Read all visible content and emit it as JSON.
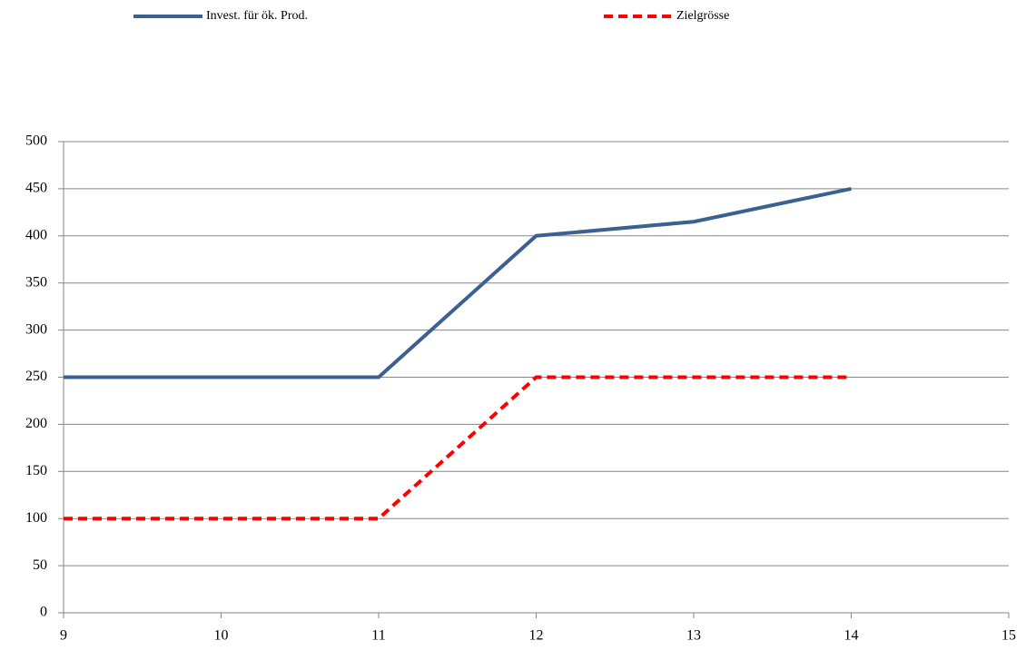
{
  "chart_data": {
    "type": "line",
    "x": [
      9,
      10,
      11,
      12,
      13,
      14
    ],
    "series": [
      {
        "name": "Invest. für ök. Prod.",
        "color": "#3c6191",
        "dashed": false,
        "values": [
          250,
          250,
          250,
          400,
          415,
          450
        ]
      },
      {
        "name": "Zielgrösse",
        "color": "#ff0000",
        "dashed": true,
        "values": [
          100,
          100,
          100,
          250,
          250,
          250
        ]
      }
    ],
    "xlim": [
      9,
      15
    ],
    "xticks": [
      9,
      10,
      11,
      12,
      13,
      14,
      15
    ],
    "ylim": [
      0,
      500
    ],
    "yticks": [
      0,
      50,
      100,
      150,
      200,
      250,
      300,
      350,
      400,
      450,
      500
    ],
    "grid": true,
    "legend": "top"
  }
}
